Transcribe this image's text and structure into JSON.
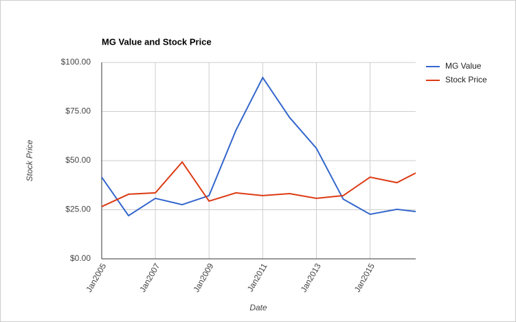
{
  "chart_data": {
    "type": "line",
    "title": "MG Value and Stock Price",
    "x_label": "Date",
    "y_label": "Stock Price",
    "x": [
      2005,
      2006,
      2007,
      2008,
      2009,
      2010,
      2011,
      2012,
      2013,
      2014,
      2015,
      2016,
      2016.7
    ],
    "series": [
      {
        "name": "MG Value",
        "color": "#3366cc",
        "values": [
          41.6,
          22.0,
          30.8,
          27.6,
          32.2,
          65.4,
          92.3,
          72.0,
          56.3,
          30.4,
          22.7,
          25.2,
          24.1
        ]
      },
      {
        "name": "Stock Price",
        "color": "#dc3912",
        "values": [
          26.6,
          32.9,
          33.6,
          49.3,
          29.4,
          33.6,
          32.2,
          33.2,
          30.8,
          32.2,
          41.6,
          38.8,
          43.7
        ]
      }
    ],
    "xlim": [
      2005,
      2016.7
    ],
    "xticks": [
      {
        "value": 2005,
        "label": "Jan2005"
      },
      {
        "value": 2007,
        "label": "Jan2007"
      },
      {
        "value": 2009,
        "label": "Jan2009"
      },
      {
        "value": 2011,
        "label": "Jan2011"
      },
      {
        "value": 2013,
        "label": "Jan2013"
      },
      {
        "value": 2015,
        "label": "Jan2015"
      }
    ],
    "ylim": [
      0,
      100
    ],
    "yticks": [
      {
        "value": 0,
        "label": "$0.00"
      },
      {
        "value": 25,
        "label": "$25.00"
      },
      {
        "value": 50,
        "label": "$50.00"
      },
      {
        "value": 75,
        "label": "$75.00"
      },
      {
        "value": 100,
        "label": "$100.00"
      }
    ],
    "grid": true,
    "legend": "right"
  }
}
